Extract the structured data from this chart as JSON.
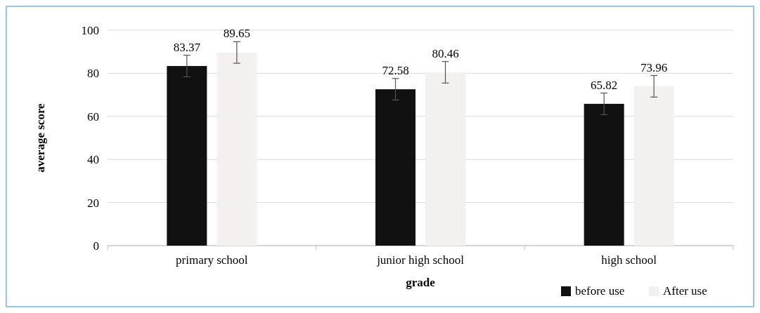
{
  "chart_data": {
    "type": "bar",
    "xlabel": "grade",
    "ylabel": "average score",
    "categories": [
      "primary school",
      "junior high school",
      "high school"
    ],
    "series": [
      {
        "name": "before use",
        "color": "#111111",
        "values": [
          83.37,
          72.58,
          65.82
        ],
        "errors": [
          5,
          5,
          5
        ]
      },
      {
        "name": "After use",
        "color": "#f3f0ef",
        "values": [
          89.65,
          80.46,
          73.96
        ],
        "errors": [
          5,
          5,
          5
        ]
      }
    ],
    "ylim": [
      0,
      100
    ],
    "yticks": [
      0,
      20,
      40,
      60,
      80,
      100
    ],
    "grid": "y",
    "legend": "bottom right",
    "data_labels": true
  }
}
